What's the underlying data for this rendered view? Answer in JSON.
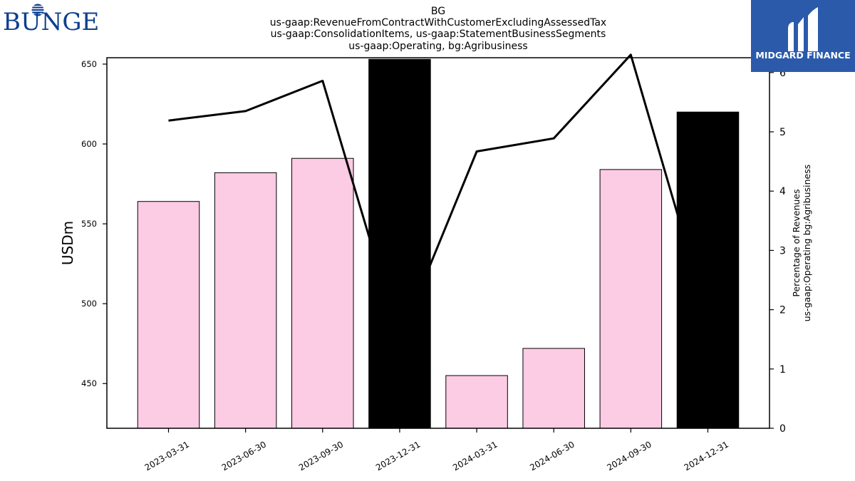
{
  "chart_data": {
    "type": "bar",
    "title_lines": [
      "BG",
      "us-gaap:RevenueFromContractWithCustomerExcludingAssessedTax",
      "us-gaap:ConsolidationItems, us-gaap:StatementBusinessSegments",
      "us-gaap:Operating, bg:Agribusiness"
    ],
    "ylabel": "USDm",
    "y2label_lines": [
      "Percentage of Revenues",
      "us-gaap:Operating bg:Agribusiness"
    ],
    "categories": [
      "2023-03-31",
      "2023-06-30",
      "2023-09-30",
      "2023-12-31",
      "2024-03-31",
      "2024-06-30",
      "2024-09-30",
      "2024-12-31"
    ],
    "bar_values": [
      564,
      582,
      591,
      653,
      455,
      472,
      584,
      620
    ],
    "highlighted": [
      false,
      false,
      false,
      true,
      false,
      false,
      false,
      true
    ],
    "line_values": [
      5.19,
      5.35,
      5.86,
      1.5,
      4.67,
      4.89,
      6.3,
      1.86
    ],
    "ylim": [
      422,
      654
    ],
    "y2lim": [
      0,
      6.25
    ],
    "yticks": [
      450,
      500,
      550,
      600,
      650
    ],
    "y2ticks": [
      0,
      1,
      2,
      3,
      4,
      5,
      6
    ],
    "colors": {
      "bar": "#fccbe4",
      "bar_highlight": "#000000",
      "line": "#000000"
    }
  },
  "logos": {
    "left_text": "BUNGE",
    "right_text": "MIDGARD FINANCE",
    "left_color": "#0d3f8f",
    "right_bg": "#2b5aab"
  }
}
